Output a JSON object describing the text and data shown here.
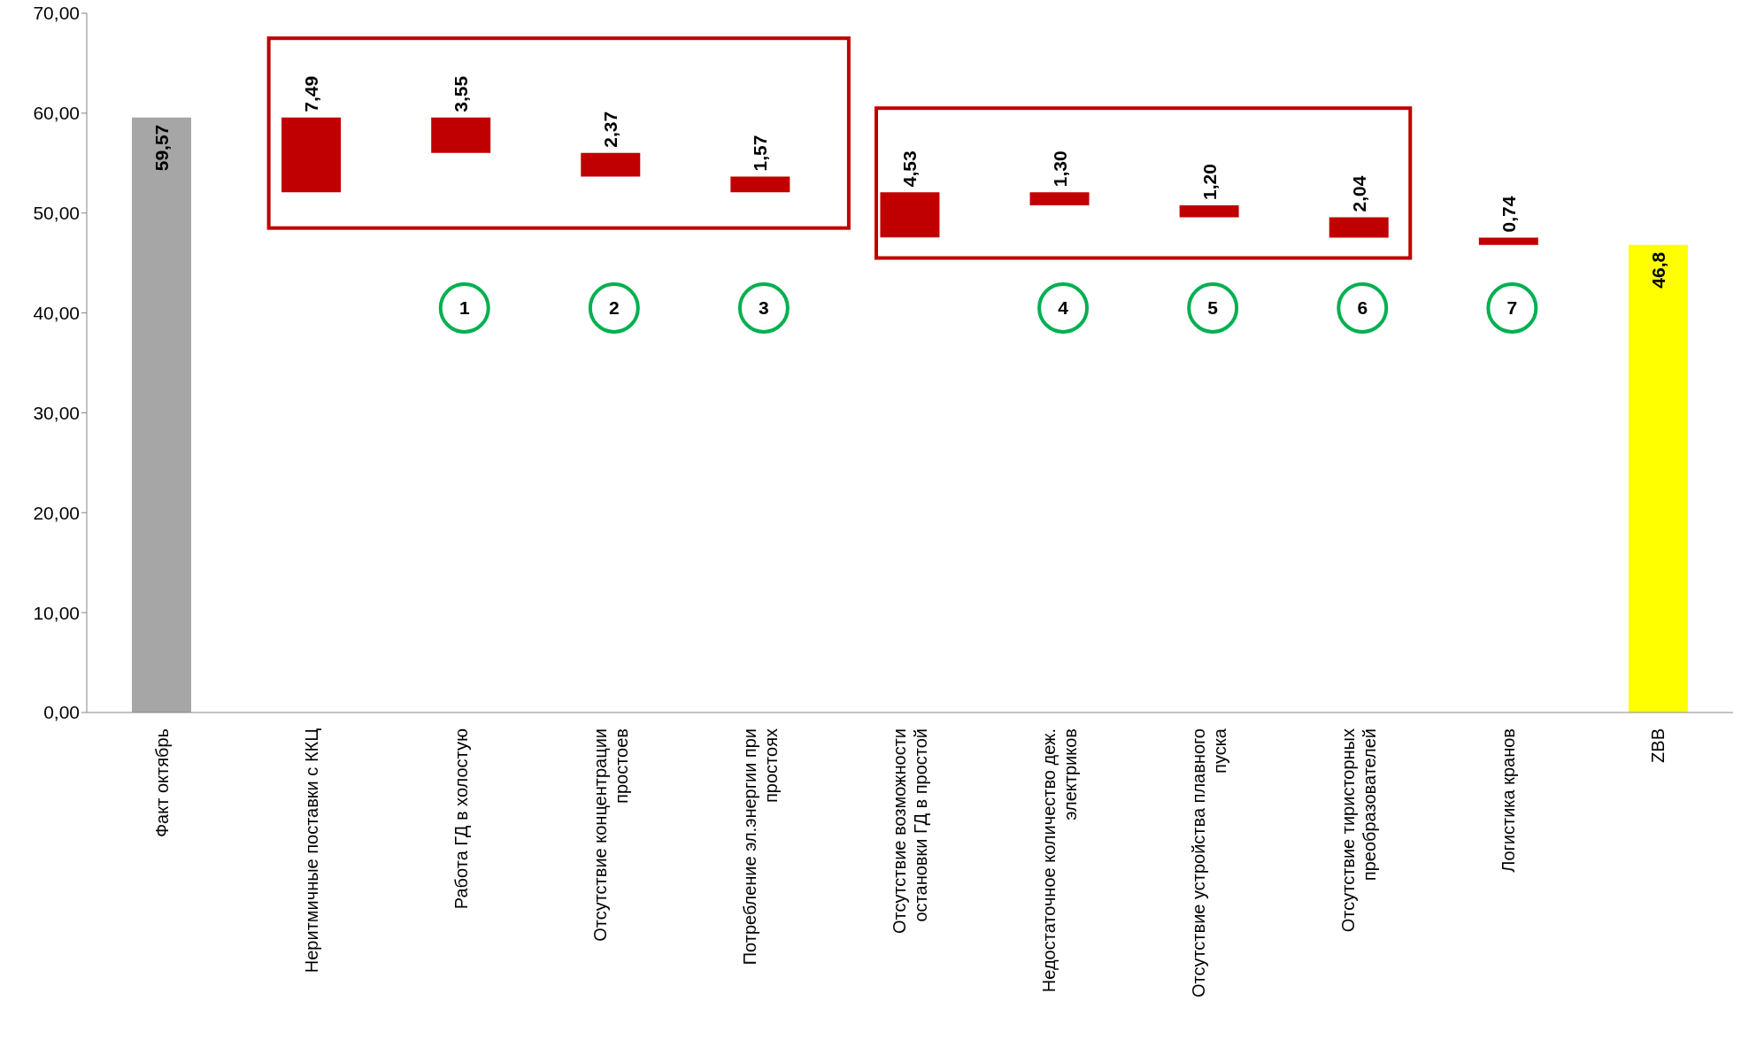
{
  "chart_data": {
    "type": "bar",
    "categories": [
      "Факт октябрь",
      "Неритмичные поставки с ККЦ",
      "Работа ГД в холостую",
      "Отсутствие концентрации простоев",
      "Потребление эл.энергии при простоях",
      "Отсутствие возможности остановки ГД в простой",
      "Недостаточное количество деж. электриков",
      "Отсутствие устройства плавного пуска",
      "Отсутствие тиристорных преобразователей",
      "Логистика кранов",
      "ZBB"
    ],
    "values": [
      59.57,
      7.49,
      3.55,
      2.37,
      1.57,
      4.53,
      1.3,
      1.2,
      2.04,
      0.74,
      46.8
    ],
    "base": [
      0,
      52.08,
      56.02,
      53.65,
      52.08,
      47.55,
      50.78,
      49.58,
      47.54,
      46.8,
      0
    ],
    "colors": [
      "#a6a6a6",
      "#c00000",
      "#c00000",
      "#c00000",
      "#c00000",
      "#c00000",
      "#c00000",
      "#c00000",
      "#c00000",
      "#c00000",
      "#ffff00"
    ],
    "value_labels": [
      "59,57",
      "7,49",
      "3,55",
      "2,37",
      "1,57",
      "4,53",
      "1,30",
      "1,20",
      "2,04",
      "0,74",
      "46,8"
    ],
    "ylim": [
      0,
      70
    ],
    "yticks": [
      {
        "value": 0,
        "label": "0,00"
      },
      {
        "value": 10,
        "label": "10,00"
      },
      {
        "value": 20,
        "label": "20,00"
      },
      {
        "value": 30,
        "label": "30,00"
      },
      {
        "value": 40,
        "label": "40,00"
      },
      {
        "value": 50,
        "label": "50,00"
      },
      {
        "value": 60,
        "label": "60,00"
      },
      {
        "value": 70,
        "label": "70,00"
      }
    ],
    "grid": false,
    "annotations": [
      "1",
      "2",
      "3",
      "4",
      "5",
      "6",
      "7"
    ]
  }
}
